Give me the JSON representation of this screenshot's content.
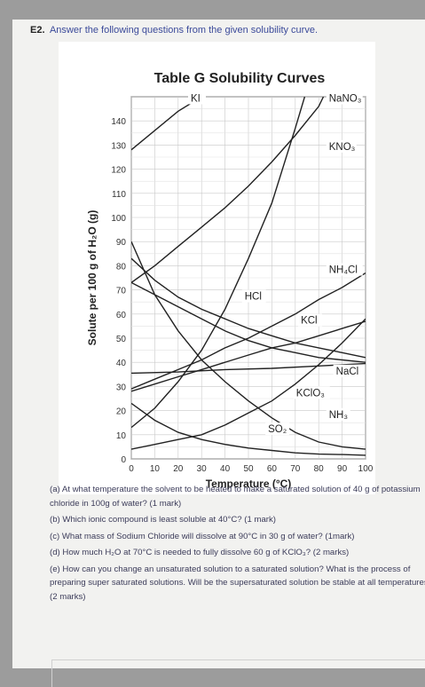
{
  "heading": {
    "number": "E2.",
    "text": "Answer the following questions from the given solubility curve."
  },
  "chart_data": {
    "type": "line",
    "title": "Table G   Solubility Curves",
    "xlabel": "Temperature (°C)",
    "ylabel": "Solute per 100 g of H₂O (g)",
    "xlim": [
      0,
      100
    ],
    "ylim": [
      0,
      150
    ],
    "xticks": [
      0,
      10,
      20,
      30,
      40,
      50,
      60,
      70,
      80,
      90,
      100
    ],
    "yticks": [
      0,
      10,
      20,
      30,
      40,
      50,
      60,
      70,
      80,
      90,
      100,
      110,
      120,
      130,
      140
    ],
    "grid": true,
    "series": [
      {
        "name": "KI",
        "label_x": 25,
        "label_y": 148,
        "points": [
          [
            0,
            128
          ],
          [
            20,
            144
          ],
          [
            30,
            150
          ]
        ]
      },
      {
        "name": "NaNO₃",
        "label_x": 84,
        "label_y": 148,
        "points": [
          [
            0,
            73
          ],
          [
            10,
            80
          ],
          [
            20,
            88
          ],
          [
            30,
            96
          ],
          [
            40,
            104
          ],
          [
            50,
            113
          ],
          [
            60,
            123
          ],
          [
            70,
            134
          ],
          [
            80,
            146
          ],
          [
            82,
            150
          ]
        ]
      },
      {
        "name": "KNO₃",
        "label_x": 84,
        "label_y": 128,
        "points": [
          [
            0,
            13
          ],
          [
            10,
            21
          ],
          [
            20,
            32
          ],
          [
            30,
            45
          ],
          [
            40,
            62
          ],
          [
            50,
            83
          ],
          [
            60,
            106
          ],
          [
            70,
            137
          ],
          [
            74,
            150
          ]
        ]
      },
      {
        "name": "NH₄Cl",
        "label_x": 84,
        "label_y": 77,
        "points": [
          [
            0,
            29
          ],
          [
            10,
            33
          ],
          [
            20,
            37
          ],
          [
            30,
            41
          ],
          [
            40,
            46
          ],
          [
            50,
            50
          ],
          [
            60,
            55
          ],
          [
            70,
            60
          ],
          [
            80,
            66
          ],
          [
            90,
            71
          ],
          [
            100,
            77
          ]
        ]
      },
      {
        "name": "HCl",
        "label_x": 48,
        "label_y": 66,
        "points": [
          [
            0,
            83
          ],
          [
            10,
            74
          ],
          [
            20,
            67
          ],
          [
            30,
            62
          ],
          [
            40,
            58
          ],
          [
            50,
            54
          ],
          [
            60,
            51
          ],
          [
            70,
            48
          ],
          [
            80,
            46
          ],
          [
            90,
            44
          ],
          [
            100,
            42
          ]
        ]
      },
      {
        "name": "KCl",
        "label_x": 72,
        "label_y": 56,
        "points": [
          [
            0,
            28
          ],
          [
            10,
            31
          ],
          [
            20,
            34
          ],
          [
            30,
            37
          ],
          [
            40,
            40
          ],
          [
            50,
            43
          ],
          [
            60,
            46
          ],
          [
            70,
            48
          ],
          [
            80,
            51
          ],
          [
            90,
            54
          ],
          [
            100,
            57
          ]
        ]
      },
      {
        "name": "NaCl",
        "label_x": 87,
        "label_y": 35,
        "points": [
          [
            0,
            35.5
          ],
          [
            20,
            36
          ],
          [
            40,
            37
          ],
          [
            60,
            37.5
          ],
          [
            80,
            38.5
          ],
          [
            100,
            39.5
          ]
        ]
      },
      {
        "name": "KClO₃",
        "label_x": 70,
        "label_y": 26,
        "points": [
          [
            0,
            4
          ],
          [
            10,
            6
          ],
          [
            20,
            8
          ],
          [
            30,
            10
          ],
          [
            40,
            14
          ],
          [
            50,
            19
          ],
          [
            60,
            24
          ],
          [
            70,
            31
          ],
          [
            80,
            39
          ],
          [
            90,
            48
          ],
          [
            100,
            58
          ]
        ]
      },
      {
        "name": "NH₃",
        "label_x": 84,
        "label_y": 17,
        "points": [
          [
            0,
            90
          ],
          [
            10,
            68
          ],
          [
            20,
            53
          ],
          [
            30,
            41
          ],
          [
            40,
            32
          ],
          [
            50,
            24
          ],
          [
            60,
            17
          ],
          [
            70,
            11
          ],
          [
            80,
            7
          ],
          [
            90,
            5
          ],
          [
            100,
            4
          ]
        ]
      },
      {
        "name": "SO₂",
        "label_x": 58,
        "label_y": 11,
        "points": [
          [
            0,
            23
          ],
          [
            10,
            16
          ],
          [
            20,
            11
          ],
          [
            30,
            8
          ],
          [
            40,
            6
          ],
          [
            50,
            4.5
          ],
          [
            60,
            3.5
          ],
          [
            70,
            2.5
          ],
          [
            80,
            2
          ],
          [
            90,
            1.8
          ],
          [
            100,
            1.5
          ]
        ]
      },
      {
        "name": "",
        "points": [
          [
            0,
            73
          ],
          [
            10,
            68
          ],
          [
            20,
            63
          ],
          [
            30,
            58
          ],
          [
            40,
            53
          ],
          [
            50,
            49
          ],
          [
            60,
            46
          ],
          [
            70,
            44
          ],
          [
            80,
            42
          ],
          [
            90,
            41
          ],
          [
            100,
            40
          ]
        ]
      }
    ]
  },
  "questions": [
    "(a)  At what temperature the solvent to be heated to make a saturated solution of 40 g of potassium chloride in 100g of water? (1 mark)",
    "(b)  Which ionic compound is least soluble at 40°C?  (1 mark)",
    "(c)  What mass of Sodium Chloride will dissolve at 90°C in 30 g of water?   (1mark)",
    "(d)  How much H₂O at 70°C is needed to fully dissolve 60 g of KClO₃?         (2 marks)",
    "(e)  How can you change an unsaturated solution to a saturated solution? What is the process of preparing super saturated solutions. Will be the supersaturated solution be stable at all temperatures. (2 marks)"
  ]
}
